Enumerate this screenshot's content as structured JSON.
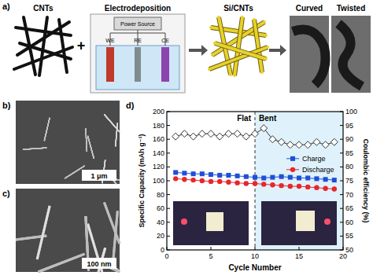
{
  "panels": {
    "a": {
      "label": "a)",
      "steps": [
        "CNTs",
        "Electrodeposition",
        "Si/CNTs",
        "Curved",
        "Twisted"
      ],
      "cell_labels": [
        "Power Source",
        "WE",
        "RE",
        "CE"
      ],
      "plus": "+"
    },
    "b": {
      "label": "b)",
      "scale_bar": "1 μm"
    },
    "c": {
      "label": "c)",
      "scale_bar": "100 nm"
    }
  },
  "chart_data": {
    "label": "d)",
    "type": "line",
    "x": [
      1,
      2,
      3,
      4,
      5,
      6,
      7,
      8,
      9,
      10,
      11,
      12,
      13,
      14,
      15,
      16,
      17,
      18,
      19
    ],
    "xlim": [
      0,
      20
    ],
    "xticks": [
      0,
      5,
      10,
      15,
      20
    ],
    "xlabel": "Cycle Number",
    "ylabel": "Specific Capacity (mAh g⁻¹)",
    "ylim": [
      0,
      200
    ],
    "yticks": [
      0,
      20,
      40,
      60,
      80,
      100,
      120,
      140,
      160,
      180,
      200
    ],
    "y2label": "Coulombic efficiency (%)",
    "y2lim": [
      50,
      100
    ],
    "y2ticks": [
      50,
      55,
      60,
      65,
      70,
      75,
      80,
      85,
      90,
      95,
      100
    ],
    "divider": 10,
    "annotations": [
      "Flat",
      "Bent"
    ],
    "grid": false,
    "legend": "right",
    "series": [
      {
        "name": "Charge",
        "color": "#1f4fd8",
        "marker": "square",
        "values": [
          112,
          111,
          110,
          110,
          109,
          108,
          108,
          107,
          106,
          105,
          104,
          105,
          106,
          105,
          104,
          104,
          103,
          102,
          101
        ]
      },
      {
        "name": "Discharge",
        "color": "#e8262b",
        "marker": "circle",
        "values": [
          103,
          102,
          101,
          100,
          99,
          99,
          98,
          97,
          96,
          96,
          95,
          94,
          93,
          92,
          92,
          91,
          90,
          89,
          88
        ]
      },
      {
        "color": "#333333",
        "marker": "diamond",
        "axis": "y2",
        "values": [
          91,
          92,
          91,
          92,
          92,
          91,
          92,
          92,
          91,
          92,
          94,
          90,
          89,
          88,
          88,
          88,
          89,
          88,
          89
        ]
      }
    ]
  }
}
